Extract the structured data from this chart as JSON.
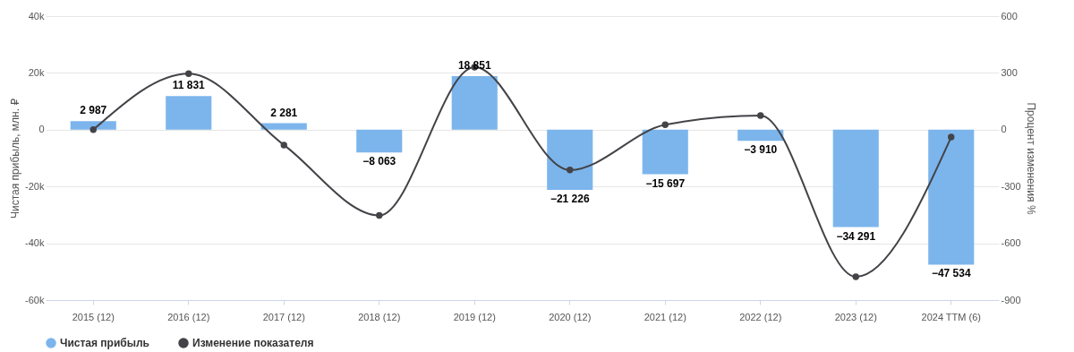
{
  "chart_data": {
    "type": "bar",
    "xlabel": null,
    "ylabel": "Чистая прибыль, млн. ₽",
    "y2label": "Процент изменения %",
    "categories": [
      "2015 (12)",
      "2016 (12)",
      "2017 (12)",
      "2018 (12)",
      "2019 (12)",
      "2020 (12)",
      "2021 (12)",
      "2022 (12)",
      "2023 (12)",
      "2024 TTM (6)"
    ],
    "series": [
      {
        "name": "Чистая прибыль",
        "color": "#7cb5ec",
        "values": [
          2987,
          11831,
          2281,
          -8063,
          18851,
          -21226,
          -15697,
          -3910,
          -34291,
          -47534
        ],
        "value_labels": [
          "2 987",
          "11 831",
          "2 281",
          "−8 063",
          "18 851",
          "−21 226",
          "−15 697",
          "−3 910",
          "−34 291",
          "−47 534"
        ]
      },
      {
        "name": "Изменение показателя",
        "type": "line",
        "axis": "y2",
        "color": "#434348",
        "values": [
          0,
          296,
          -81,
          -453,
          330,
          -213,
          26,
          75,
          -777,
          -39
        ]
      }
    ],
    "ylim": [
      -60000,
      40000
    ],
    "yticks": [
      {
        "value": -60000,
        "label": "-60k"
      },
      {
        "value": -40000,
        "label": "-40k"
      },
      {
        "value": -20000,
        "label": "-20k"
      },
      0,
      {
        "value": 20000,
        "label": "20k"
      },
      {
        "value": 40000,
        "label": "40k"
      }
    ],
    "y2lim": [
      -900,
      600
    ],
    "y2ticks": [
      -900,
      -600,
      -300,
      0,
      300,
      600
    ],
    "grid": "y",
    "legend": "bottom",
    "marker": "circle",
    "line_style": "solid"
  }
}
